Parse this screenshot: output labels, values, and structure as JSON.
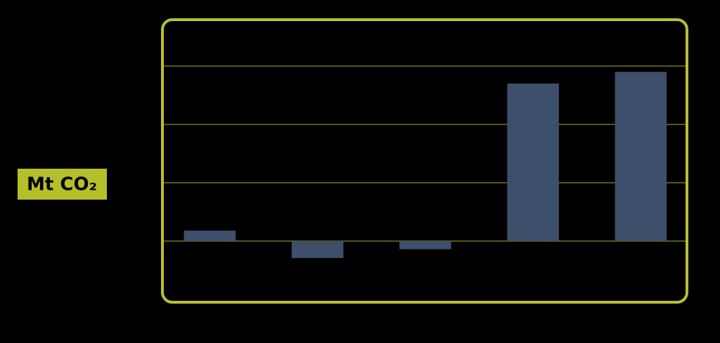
{
  "chart_data": {
    "type": "bar",
    "y_label": "Mt CO₂",
    "categories": [
      null,
      null,
      null,
      null,
      null
    ],
    "values": [
      0.18,
      -0.29,
      -0.14,
      2.7,
      2.9
    ],
    "color": "#3d4f6b",
    "ylim": [
      -1,
      3.8
    ],
    "yticks": [
      0,
      1,
      2,
      3
    ],
    "grid": true
  }
}
